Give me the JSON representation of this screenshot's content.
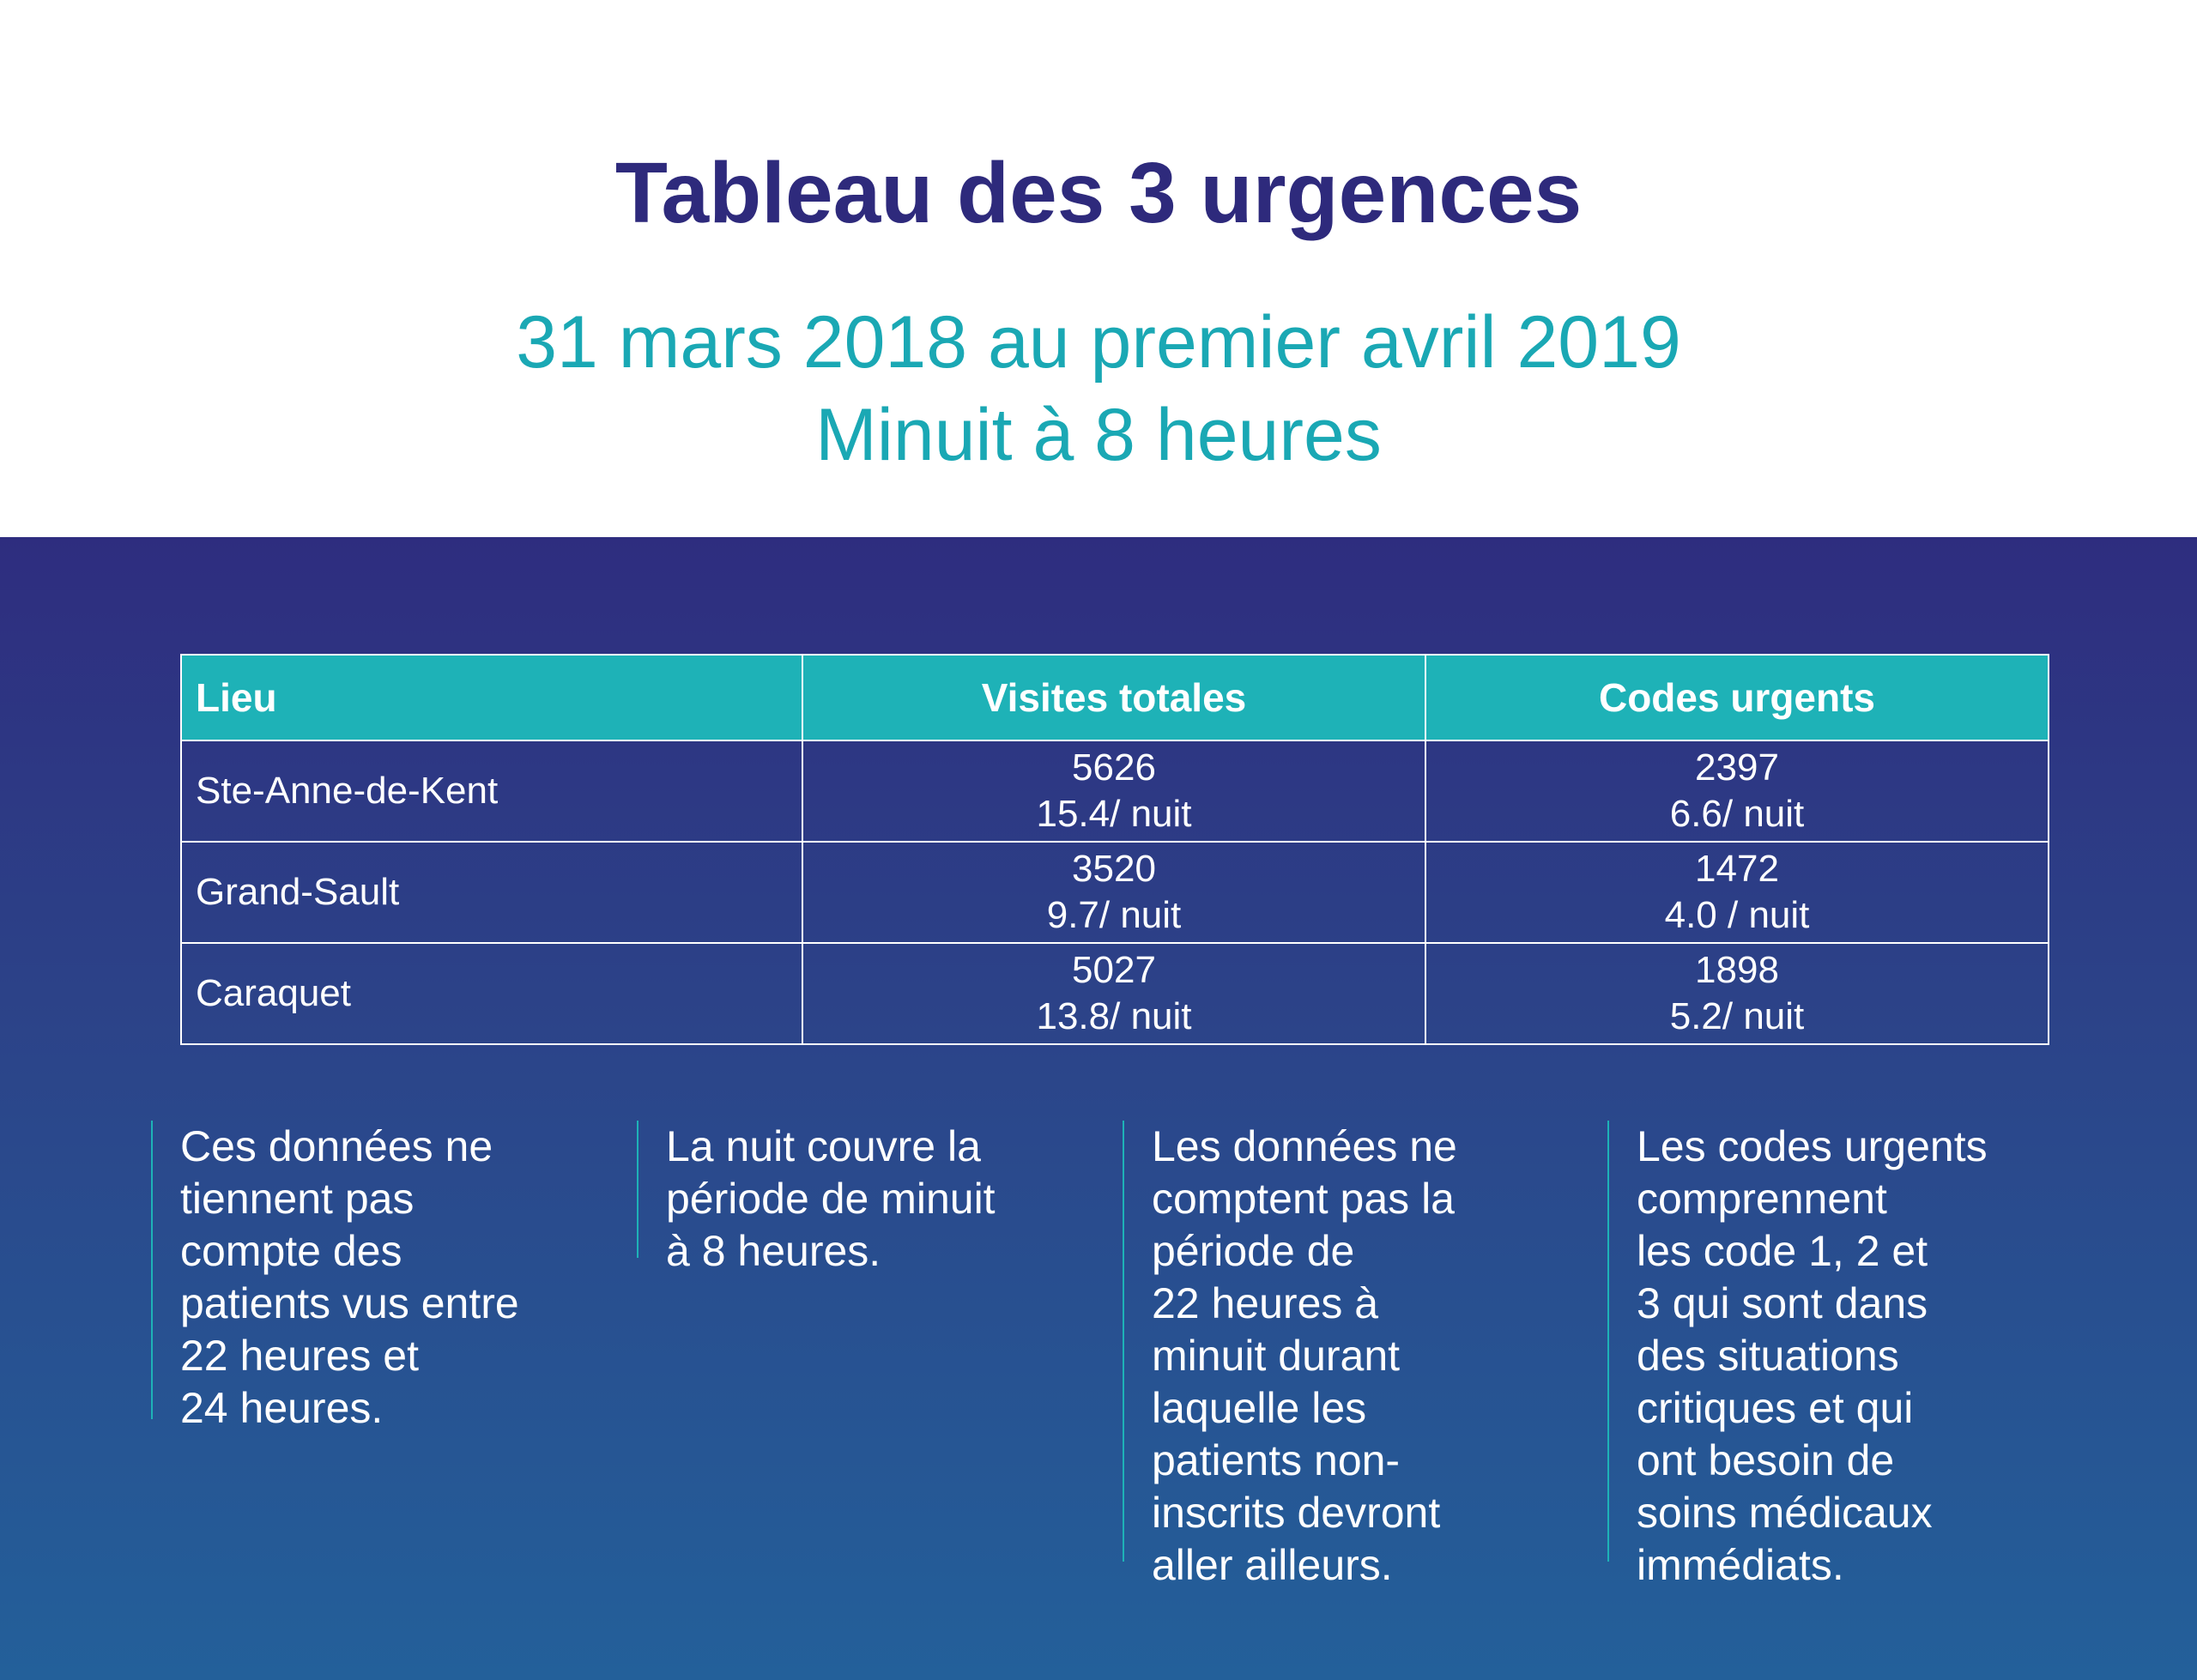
{
  "header": {
    "title": "Tableau des 3 urgences",
    "subtitle_line1": "31 mars 2018 au premier avril 2019",
    "subtitle_line2": "Minuit à 8 heures"
  },
  "table": {
    "columns": [
      "Lieu",
      "Visites totales",
      "Codes urgents"
    ],
    "rows": [
      {
        "lieu": "Ste-Anne-de-Kent",
        "visites_total": "5626",
        "visites_nuit": "15.4/ nuit",
        "codes_total": "2397",
        "codes_nuit": "6.6/ nuit"
      },
      {
        "lieu": "Grand-Sault",
        "visites_total": "3520",
        "visites_nuit": "9.7/ nuit",
        "codes_total": "1472",
        "codes_nuit": "4.0 / nuit"
      },
      {
        "lieu": "Caraquet",
        "visites_total": "5027",
        "visites_nuit": "13.8/ nuit",
        "codes_total": "1898",
        "codes_nuit": "5.2/ nuit"
      }
    ]
  },
  "notes": [
    "Ces données ne\ntiennent pas\ncompte des\npatients vus entre\n22 heures et\n24 heures.",
    "La nuit couvre la\npériode de minuit\nà 8 heures.",
    "Les données ne\ncomptent pas la\npériode de\n22 heures à\nminuit durant\nlaquelle les\npatients non-\ninscrits devront\naller ailleurs.",
    "Les codes urgents\ncomprennent\nles code  1, 2 et\n3 qui sont dans\ndes situations\ncritiques et qui\nont besoin de\nsoins médicaux\nimmédiats."
  ],
  "colors": {
    "title": "#2e2a7c",
    "subtitle": "#1aa8b4",
    "panel_top": "#2e2d7f",
    "panel_bottom": "#23609a",
    "table_header": "#1eb2b7"
  }
}
